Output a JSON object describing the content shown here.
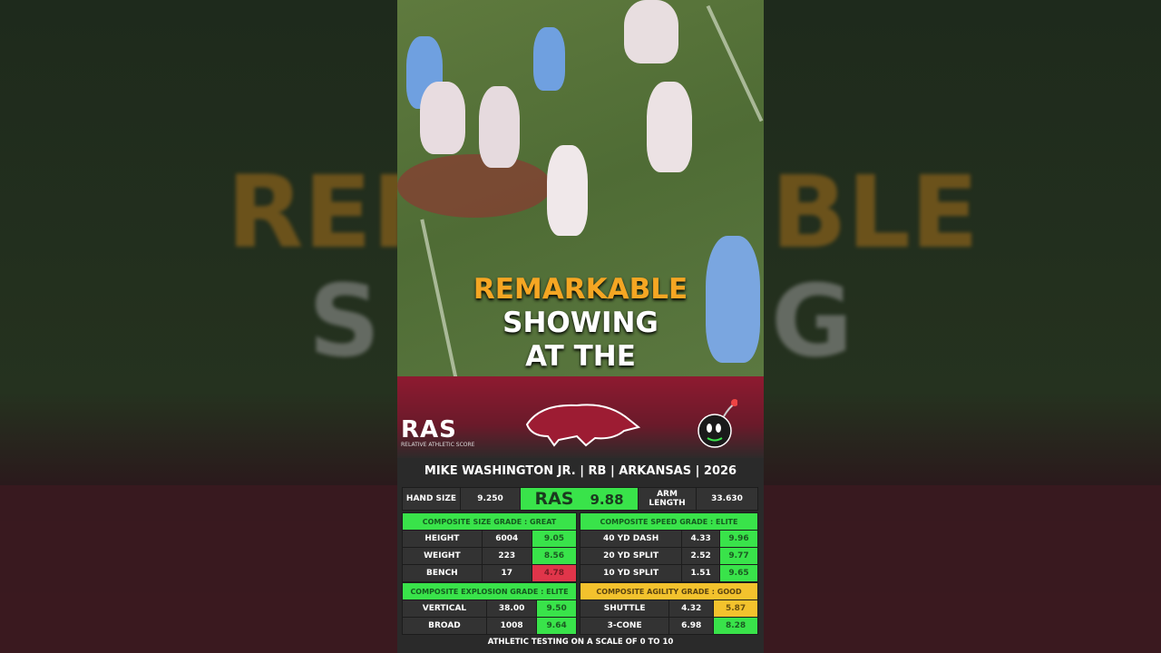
{
  "caption": {
    "line1": "REMARKABLE",
    "line2": "SHOWING",
    "line3": "AT THE",
    "accent": "#f5a623"
  },
  "banner": {
    "logo_text": "RAS",
    "logo_subtitle": "RELATIVE ATHLETIC SCORE",
    "team_logo": "razorback-hog-icon",
    "mascot": "bomb-mascot-icon"
  },
  "player": {
    "title": "MIKE WASHINGTON JR. | RB | ARKANSAS | 2026"
  },
  "top_row": {
    "hand_label": "HAND SIZE",
    "hand_value": "9.250",
    "ras_label": "RAS",
    "ras_score": "9.88",
    "arm_label": "ARM LENGTH",
    "arm_value": "33.630"
  },
  "size": {
    "grade": "COMPOSITE SIZE GRADE : GREAT",
    "rows": [
      {
        "label": "HEIGHT",
        "value": "6004",
        "score": "9.05"
      },
      {
        "label": "WEIGHT",
        "value": "223",
        "score": "8.56"
      },
      {
        "label": "BENCH",
        "value": "17",
        "score": "4.78"
      }
    ]
  },
  "speed": {
    "grade": "COMPOSITE SPEED GRADE : ELITE",
    "rows": [
      {
        "label": "40 YD DASH",
        "value": "4.33",
        "score": "9.96"
      },
      {
        "label": "20 YD SPLIT",
        "value": "2.52",
        "score": "9.77"
      },
      {
        "label": "10 YD SPLIT",
        "value": "1.51",
        "score": "9.65"
      }
    ]
  },
  "explosion": {
    "grade": "COMPOSITE EXPLOSION GRADE : ELITE",
    "rows": [
      {
        "label": "VERTICAL",
        "value": "38.00",
        "score": "9.50"
      },
      {
        "label": "BROAD",
        "value": "1008",
        "score": "9.64"
      }
    ]
  },
  "agility": {
    "grade": "COMPOSITE AGILITY GRADE : GOOD",
    "rows": [
      {
        "label": "SHUTTLE",
        "value": "4.32",
        "score": "5.87"
      },
      {
        "label": "3-CONE",
        "value": "6.98",
        "score": "8.28"
      }
    ]
  },
  "footer": "ATHLETIC TESTING ON A SCALE OF 0 TO 10",
  "colors": {
    "elite_green": "#39e34a",
    "good_yellow": "#f3c22d",
    "poor_red": "#e0354a",
    "arkansas_red": "#8e1a30"
  }
}
